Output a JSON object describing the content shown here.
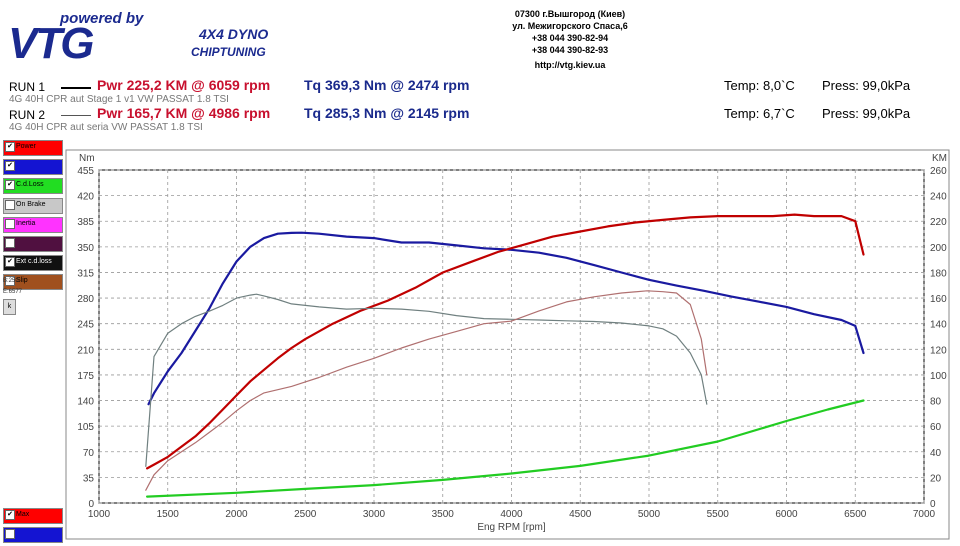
{
  "header": {
    "powered": "powered by",
    "brand": "VTG",
    "tagline1": "4X4 DYNO",
    "tagline2": "CHIPTUNING",
    "contact": [
      "07300 г.Вышгород (Киев)",
      "ул. Межигорского Спаса,6",
      "+38 044 390-82-94",
      "+38 044 390-82-93",
      "http://vtg.kiev.ua"
    ]
  },
  "runs": [
    {
      "label": "RUN 1",
      "pwr": "Pwr  225,2 KM @ 6059 rpm",
      "tq": "Tq 369,3 Nm @ 2474 rpm",
      "temp": "Temp: 8,0`C",
      "press": "Press: 99,0kPa",
      "desc": "4G 40H  CPR aut Stage 1 v1 VW PASSAT 1.8 TSI"
    },
    {
      "label": "RUN 2",
      "pwr": "Pwr  165,7 KM @ 4986 rpm",
      "tq": "Tq 285,3 Nm @ 2145 rpm",
      "temp": "Temp: 6,7`C",
      "press": "Press: 99,0kPa",
      "desc": "4G 40H  CPR aut seria VW PASSAT 1.8 TSI"
    }
  ],
  "legend": [
    {
      "label": "Power",
      "color": "#ff0000",
      "checked": true
    },
    {
      "label": "",
      "color": "#1414d2",
      "checked": true
    },
    {
      "label": "C.d.Loss",
      "color": "#22dd22",
      "checked": true
    },
    {
      "label": "On Brake",
      "color": "#c8c8c8",
      "checked": false
    },
    {
      "label": "Inertia",
      "color": "#ff33ff",
      "checked": false
    },
    {
      "label": "",
      "color": "#501040",
      "checked": false
    },
    {
      "label": "Ext c.d.loss",
      "color": "#111111",
      "checked": true
    },
    {
      "label": "Slip",
      "color": "#a0501e",
      "checked": false
    }
  ],
  "legend_bottom": [
    {
      "label": "Max",
      "color": "#ff0000",
      "checked": true
    },
    {
      "label": "",
      "color": "#1414d2",
      "checked": false
    }
  ],
  "small_labels": {
    "b": "B:250",
    "e": "E:6577",
    "k": "k"
  },
  "chart_data": {
    "type": "line",
    "xlabel": "Eng RPM [rpm]",
    "ylabel_left": "Nm",
    "ylabel_right": "KM",
    "xlim": [
      1000,
      7000
    ],
    "ylim_left": [
      0,
      455
    ],
    "ylim_right": [
      0,
      260
    ],
    "x_ticks": [
      1000,
      1500,
      2000,
      2500,
      3000,
      3500,
      4000,
      4500,
      5000,
      5500,
      6000,
      6500,
      7000
    ],
    "y_ticks_left": [
      0,
      35,
      70,
      105,
      140,
      175,
      210,
      245,
      280,
      315,
      350,
      385,
      420,
      455
    ],
    "y_ticks_right": [
      0,
      20,
      40,
      60,
      80,
      100,
      120,
      140,
      160,
      180,
      200,
      220,
      240,
      260
    ],
    "grid": true,
    "series": [
      {
        "name": "RUN 1 Torque",
        "axis": "left",
        "color": "#1a1aa0",
        "width": 2.2,
        "x": [
          1360,
          1400,
          1500,
          1600,
          1700,
          1800,
          1900,
          2000,
          2100,
          2200,
          2300,
          2400,
          2474,
          2600,
          2800,
          3000,
          3200,
          3400,
          3600,
          3800,
          4000,
          4200,
          4400,
          4600,
          4800,
          5000,
          5200,
          5400,
          5600,
          5800,
          6000,
          6200,
          6400,
          6500,
          6560
        ],
        "y": [
          135,
          150,
          180,
          205,
          235,
          265,
          300,
          330,
          350,
          362,
          368,
          369,
          369.3,
          368,
          364,
          362,
          356,
          356,
          352,
          348,
          346,
          342,
          335,
          325,
          315,
          305,
          297,
          290,
          282,
          275,
          268,
          258,
          250,
          242,
          205
        ]
      },
      {
        "name": "RUN 1 Power",
        "axis": "right",
        "color": "#c00000",
        "width": 2.2,
        "x": [
          1350,
          1400,
          1500,
          1600,
          1700,
          1800,
          1900,
          2000,
          2100,
          2200,
          2300,
          2400,
          2500,
          2700,
          2900,
          3100,
          3300,
          3500,
          3700,
          3900,
          4100,
          4300,
          4500,
          4700,
          4900,
          5100,
          5300,
          5500,
          5700,
          5900,
          6059,
          6200,
          6400,
          6500,
          6560
        ],
        "y": [
          27,
          30,
          36,
          44,
          52,
          62,
          73,
          84,
          95,
          104,
          113,
          121,
          128,
          140,
          150,
          158,
          168,
          180,
          188,
          196,
          202,
          208,
          212,
          216,
          219,
          221,
          223,
          224,
          224,
          224,
          225.2,
          224,
          224,
          220,
          194
        ]
      },
      {
        "name": "RUN 2 Torque",
        "axis": "left",
        "color": "#708080",
        "width": 1.2,
        "x": [
          1340,
          1400,
          1500,
          1600,
          1700,
          1800,
          1900,
          2000,
          2100,
          2145,
          2200,
          2300,
          2400,
          2600,
          2800,
          3000,
          3200,
          3400,
          3600,
          3800,
          4000,
          4200,
          4400,
          4600,
          4800,
          5000,
          5100,
          5200,
          5300,
          5380,
          5420
        ],
        "y": [
          50,
          200,
          232,
          245,
          255,
          262,
          270,
          280,
          284,
          285.3,
          283,
          278,
          272,
          268,
          265,
          266,
          265,
          262,
          256,
          252,
          251,
          250,
          249,
          248,
          246,
          242,
          238,
          228,
          205,
          175,
          135
        ]
      },
      {
        "name": "RUN 2 Power",
        "axis": "right",
        "color": "#b07070",
        "width": 1.2,
        "x": [
          1340,
          1400,
          1500,
          1600,
          1700,
          1800,
          1900,
          2000,
          2100,
          2200,
          2400,
          2600,
          2800,
          3000,
          3200,
          3400,
          3600,
          3800,
          4000,
          4200,
          4400,
          4600,
          4800,
          4986,
          5100,
          5200,
          5300,
          5380,
          5420
        ],
        "y": [
          10,
          22,
          33,
          40,
          47,
          55,
          63,
          72,
          80,
          86,
          91,
          98,
          106,
          113,
          121,
          128,
          134,
          140,
          142,
          150,
          157,
          161,
          164,
          165.7,
          165,
          164,
          155,
          128,
          100
        ]
      },
      {
        "name": "C.d.Loss",
        "axis": "right",
        "color": "#22cc22",
        "width": 2.2,
        "x": [
          1350,
          2000,
          2500,
          3000,
          3500,
          4000,
          4500,
          5000,
          5500,
          6000,
          6300,
          6560
        ],
        "y": [
          5,
          8,
          11,
          14,
          18,
          23,
          29,
          37,
          48,
          64,
          73,
          80
        ]
      }
    ]
  }
}
